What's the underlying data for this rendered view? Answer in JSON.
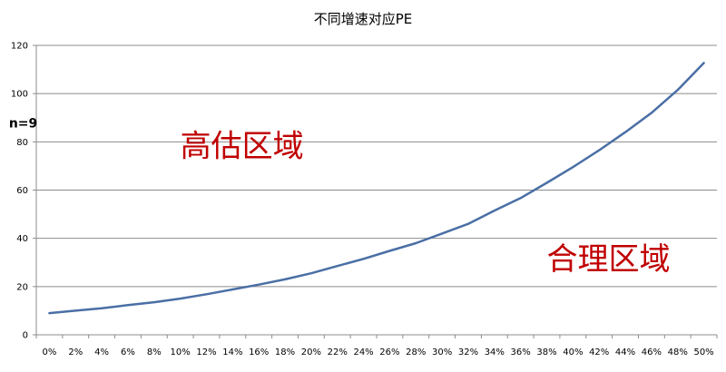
{
  "chart_data": {
    "type": "line",
    "title": "不同增速对应PE",
    "xlabel": "",
    "ylabel": "",
    "ylim": [
      0,
      120
    ],
    "yticks": [
      0,
      20,
      40,
      60,
      80,
      100,
      120
    ],
    "grid": true,
    "legend": "none",
    "x": [
      "0%",
      "2%",
      "4%",
      "6%",
      "8%",
      "10%",
      "12%",
      "14%",
      "16%",
      "18%",
      "20%",
      "22%",
      "24%",
      "26%",
      "28%",
      "30%",
      "32%",
      "34%",
      "36%",
      "38%",
      "40%",
      "42%",
      "44%",
      "46%",
      "48%",
      "50%"
    ],
    "series": [
      {
        "values": [
          9,
          10,
          11,
          12.3,
          13.5,
          15,
          16.8,
          18.8,
          20.8,
          23,
          25.5,
          28.5,
          31.5,
          34.8,
          38,
          42,
          46,
          51.5,
          56.7,
          63,
          69.5,
          76.5,
          84,
          92,
          101.5,
          112.7
        ]
      }
    ],
    "annotations": [
      {
        "text": "n=9",
        "x": "43%",
        "y": 86
      },
      {
        "text": "高估区域",
        "x": "10%",
        "y": 74
      },
      {
        "text": "合理区域",
        "x": "38%",
        "y": 27
      }
    ],
    "colors": {
      "line": "#4a6fa5",
      "grid": "#8c8c8c",
      "axis": "#8c8c8c",
      "zone_text": "#c00000",
      "label_text": "#000000"
    }
  }
}
